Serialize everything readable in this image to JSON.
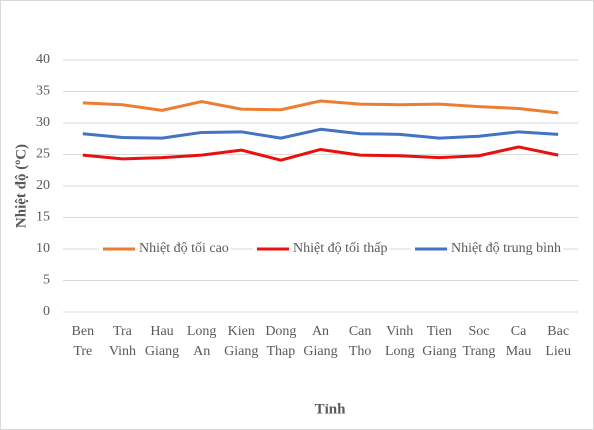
{
  "chart_data": {
    "type": "line",
    "y_label": "Nhiệt độ (ºC)",
    "x_label": "Tỉnh",
    "categories": [
      "Ben Tre",
      "Tra Vinh",
      "Hau Giang",
      "Long An",
      "Kien Giang",
      "Dong Thap",
      "An Giang",
      "Can Tho",
      "Vinh Long",
      "Tien Giang",
      "Soc Trang",
      "Ca Mau",
      "Bac Lieu"
    ],
    "series": [
      {
        "name": "Nhiệt độ tối cao",
        "color": "#ed7d31",
        "values": [
          33.2,
          32.9,
          32.0,
          33.4,
          32.2,
          32.1,
          33.5,
          33.0,
          32.9,
          33.0,
          32.6,
          32.3,
          31.6
        ]
      },
      {
        "name": "Nhiệt độ tối thấp",
        "color": "#e81010",
        "values": [
          24.9,
          24.3,
          24.5,
          24.9,
          25.7,
          24.1,
          25.8,
          24.9,
          24.8,
          24.5,
          24.8,
          26.2,
          24.9
        ]
      },
      {
        "name": "Nhiệt độ trung bình",
        "color": "#4472c4",
        "values": [
          28.3,
          27.7,
          27.6,
          28.5,
          28.6,
          27.6,
          29.0,
          28.3,
          28.2,
          27.6,
          27.9,
          28.6,
          28.2
        ]
      }
    ],
    "ylim": [
      0,
      40
    ],
    "yticks": [
      0,
      5,
      10,
      15,
      20,
      25,
      30,
      35,
      40
    ],
    "grid": true
  }
}
